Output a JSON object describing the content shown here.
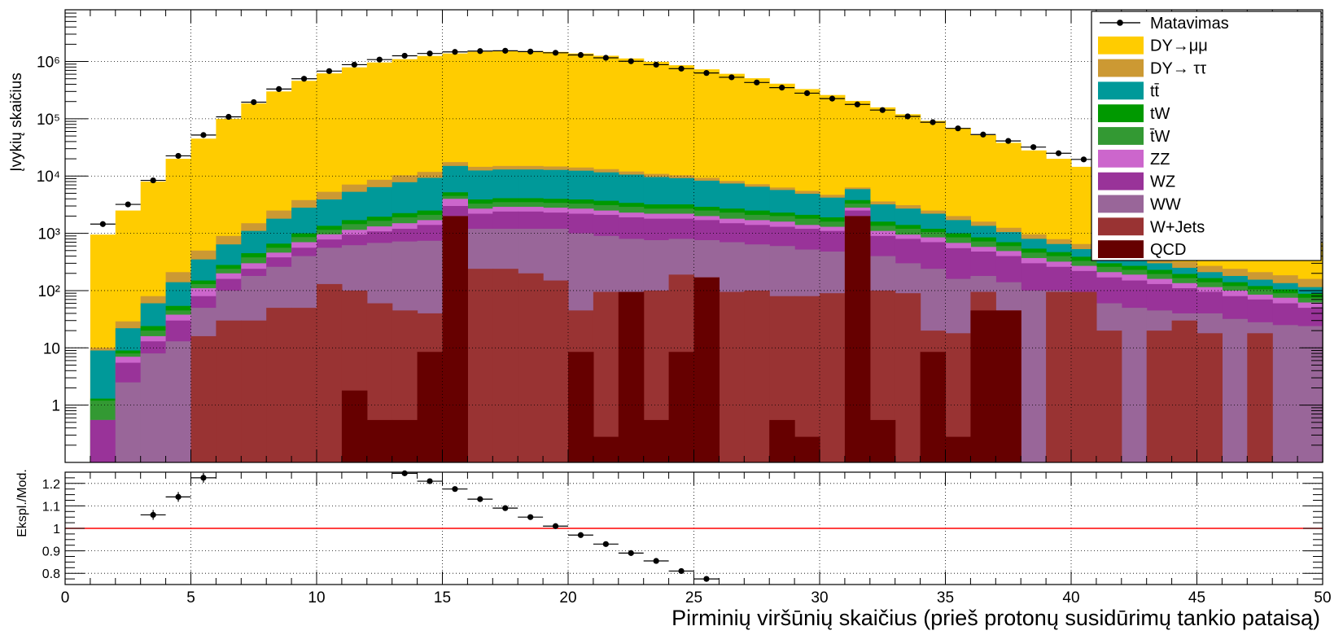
{
  "chart_data": {
    "type": "bar",
    "stacked": true,
    "xlabel": "Pirminių viršūnių skaičius (prieš protonų susidūrimų tankio pataisą)",
    "ylabel": "Įvykių skaičius",
    "ratio_ylabel": "Ekspl./Mod.",
    "xlim": [
      0,
      50
    ],
    "ylim": [
      0.1,
      8000000
    ],
    "ylog": true,
    "ratio_ylim": [
      0.75,
      1.25
    ],
    "ratio_reference": 1,
    "grid": true,
    "legend_position": "top-right",
    "x_ticks": [
      "0",
      "5",
      "10",
      "15",
      "20",
      "25",
      "30",
      "35",
      "40",
      "45",
      "50"
    ],
    "y_ticks": [
      "1",
      "10",
      "10²",
      "10³",
      "10⁴",
      "10⁵",
      "10⁶"
    ],
    "ratio_ticks": [
      "0.8",
      "0.9",
      "1",
      "1.1",
      "1.2"
    ],
    "legend": [
      {
        "label": "Matavimas",
        "color": "#000000",
        "marker": "point"
      },
      {
        "label": "DY→μμ",
        "color": "#ffcc00"
      },
      {
        "label": "DY→ ττ",
        "color": "#cc9933"
      },
      {
        "label": "tt̄",
        "color": "#009999"
      },
      {
        "label": "tW",
        "color": "#009900"
      },
      {
        "label": "t̄W",
        "color": "#339933"
      },
      {
        "label": "ZZ",
        "color": "#cc66cc"
      },
      {
        "label": "WZ",
        "color": "#993399"
      },
      {
        "label": "WW",
        "color": "#996699"
      },
      {
        "label": "W+Jets",
        "color": "#993333"
      },
      {
        "label": "QCD",
        "color": "#660000"
      }
    ],
    "bins": [
      1,
      2,
      3,
      4,
      5,
      6,
      7,
      8,
      9,
      10,
      11,
      12,
      13,
      14,
      15,
      16,
      17,
      18,
      19,
      20,
      21,
      22,
      23,
      24,
      25,
      26,
      27,
      28,
      29,
      30,
      31,
      32,
      33,
      34,
      35,
      36,
      37,
      38,
      39,
      40,
      41,
      42,
      43,
      44,
      45,
      46,
      47,
      48,
      49
    ],
    "stack_totals": {
      "QCD": [
        0,
        0,
        0,
        0,
        0,
        0,
        0,
        0,
        0,
        0,
        1.8,
        0.55,
        0.55,
        8.5,
        2000,
        0,
        0,
        0,
        0,
        8.5,
        0.28,
        95,
        0.55,
        8.5,
        170,
        0,
        0,
        0.55,
        0.28,
        0,
        2000,
        0.55,
        0,
        8.5,
        0.28,
        45,
        45,
        0,
        0,
        0,
        0,
        0,
        0,
        0,
        0,
        0,
        0,
        0,
        0
      ],
      "W+Jets": [
        0,
        0,
        0,
        0,
        16,
        30,
        30,
        50,
        50,
        130,
        100,
        60,
        45,
        40,
        2000,
        240,
        240,
        200,
        150,
        45,
        95,
        95,
        100,
        190,
        170,
        95,
        100,
        80,
        80,
        90,
        2000,
        100,
        90,
        20,
        18,
        95,
        45,
        0,
        95,
        95,
        20,
        0,
        20,
        30,
        18,
        0,
        18,
        0,
        0
      ],
      "WW": [
        0,
        2.5,
        8,
        13,
        50,
        100,
        180,
        260,
        400,
        560,
        620,
        680,
        720,
        740,
        2000,
        1200,
        1200,
        1200,
        1200,
        1000,
        900,
        800,
        760,
        800,
        760,
        700,
        640,
        600,
        520,
        480,
        2000,
        400,
        300,
        240,
        160,
        180,
        140,
        100,
        100,
        95,
        60,
        50,
        45,
        40,
        40,
        32,
        28,
        25,
        24
      ],
      "WZ": [
        0.55,
        5.5,
        13,
        30,
        80,
        160,
        240,
        380,
        560,
        780,
        950,
        1080,
        1200,
        1400,
        3000,
        2200,
        2400,
        2400,
        2300,
        2200,
        2100,
        1900,
        1800,
        1800,
        1700,
        1500,
        1400,
        1300,
        1200,
        1100,
        2500,
        900,
        800,
        700,
        550,
        480,
        400,
        300,
        260,
        220,
        170,
        150,
        130,
        110,
        95,
        80,
        70,
        60,
        50
      ],
      "ZZ": [
        0.55,
        7,
        16,
        38,
        110,
        200,
        300,
        460,
        700,
        960,
        1150,
        1320,
        1500,
        1700,
        4000,
        2700,
        2900,
        2900,
        2800,
        2700,
        2500,
        2300,
        2200,
        2200,
        2000,
        1800,
        1700,
        1600,
        1400,
        1300,
        2800,
        1100,
        950,
        850,
        680,
        580,
        490,
        370,
        320,
        270,
        210,
        190,
        160,
        135,
        115,
        100,
        85,
        75,
        62
      ],
      "t̄W": [
        1.2,
        8,
        20,
        45,
        130,
        240,
        380,
        560,
        860,
        1150,
        1450,
        1650,
        1900,
        2100,
        4500,
        3300,
        3500,
        3500,
        3400,
        3300,
        3100,
        2900,
        2700,
        2700,
        2500,
        2300,
        2100,
        2000,
        1800,
        1600,
        3300,
        1350,
        1200,
        1050,
        850,
        720,
        600,
        460,
        400,
        330,
        260,
        230,
        195,
        165,
        140,
        120,
        105,
        90,
        75
      ],
      "tW": [
        1.3,
        9,
        24,
        54,
        150,
        280,
        450,
        660,
        1000,
        1350,
        1700,
        1950,
        2250,
        2500,
        5200,
        3900,
        4100,
        4100,
        4000,
        3900,
        3700,
        3400,
        3200,
        3200,
        2900,
        2700,
        2500,
        2300,
        2100,
        1900,
        3800,
        1600,
        1400,
        1200,
        1000,
        850,
        700,
        540,
        470,
        390,
        300,
        270,
        230,
        195,
        165,
        140,
        120,
        105,
        88
      ],
      "tt̄": [
        9,
        22,
        60,
        140,
        350,
        640,
        1100,
        1800,
        2800,
        3900,
        5300,
        6400,
        7800,
        9300,
        15000,
        12500,
        13000,
        13000,
        12800,
        12400,
        11600,
        10600,
        9600,
        9200,
        8300,
        7400,
        6500,
        5700,
        4900,
        4200,
        5900,
        3200,
        2700,
        2200,
        1700,
        1350,
        1050,
        800,
        650,
        530,
        420,
        350,
        300,
        250,
        210,
        180,
        155,
        135,
        115
      ],
      "DY→ ττ": [
        10,
        29,
        80,
        210,
        500,
        900,
        1500,
        2500,
        3800,
        5300,
        7100,
        8600,
        10300,
        11800,
        17500,
        14500,
        15000,
        15000,
        14700,
        14100,
        13200,
        12000,
        10900,
        10300,
        9300,
        8200,
        7200,
        6300,
        5500,
        4700,
        6300,
        3600,
        3100,
        2500,
        2000,
        1600,
        1250,
        960,
        790,
        650,
        520,
        440,
        380,
        320,
        270,
        240,
        210,
        185,
        160
      ],
      "DY→μμ": [
        950,
        2500,
        8000,
        20000,
        45000,
        100000,
        185000,
        300000,
        460000,
        620000,
        790000,
        960000,
        1100000,
        1250000,
        1380000,
        1480000,
        1520000,
        1520000,
        1470000,
        1380000,
        1260000,
        1130000,
        990000,
        860000,
        730000,
        610000,
        510000,
        410000,
        330000,
        260000,
        205000,
        158000,
        120000,
        92000,
        69000,
        52000,
        38000,
        28000,
        20000,
        14500,
        10500,
        7500,
        5300,
        3800,
        2700,
        1900,
        1300,
        950,
        680
      ]
    },
    "data_points": {
      "x": [
        1.5,
        2.5,
        3.5,
        4.5,
        5.5,
        6.5,
        7.5,
        8.5,
        9.5,
        10.5,
        11.5,
        12.5,
        13.5,
        14.5,
        15.5,
        16.5,
        17.5,
        18.5,
        19.5,
        20.5,
        21.5,
        22.5,
        23.5,
        24.5,
        25.5,
        26.5,
        27.5,
        28.5,
        29.5,
        30.5,
        31.5,
        32.5,
        33.5,
        34.5,
        35.5,
        36.5,
        37.5,
        38.5,
        39.5,
        40.5,
        41.5,
        42.5,
        43.5,
        44.5,
        45.5,
        46.5,
        47.5,
        48.5,
        49.5
      ],
      "y": [
        1450,
        3200,
        8400,
        22500,
        52000,
        108000,
        195000,
        330000,
        500000,
        680000,
        880000,
        1080000,
        1260000,
        1380000,
        1470000,
        1520000,
        1540000,
        1490000,
        1420000,
        1300000,
        1160000,
        1010000,
        880000,
        750000,
        630000,
        530000,
        430000,
        350000,
        280000,
        225000,
        178000,
        142000,
        110000,
        87000,
        68000,
        53000,
        41000,
        32000,
        25000,
        19500,
        15000,
        11500,
        8900,
        6900,
        5300,
        4100,
        3200,
        2500,
        1900
      ]
    },
    "ratio_points": {
      "x": [
        3.5,
        4.5,
        5.5,
        13.5,
        14.5,
        15.5,
        16.5,
        17.5,
        18.5,
        19.5,
        20.5,
        21.5,
        22.5,
        23.5,
        24.5,
        25.5
      ],
      "y": [
        1.06,
        1.14,
        1.225,
        1.245,
        1.21,
        1.175,
        1.13,
        1.09,
        1.05,
        1.01,
        0.97,
        0.93,
        0.89,
        0.855,
        0.81,
        0.775
      ]
    }
  }
}
